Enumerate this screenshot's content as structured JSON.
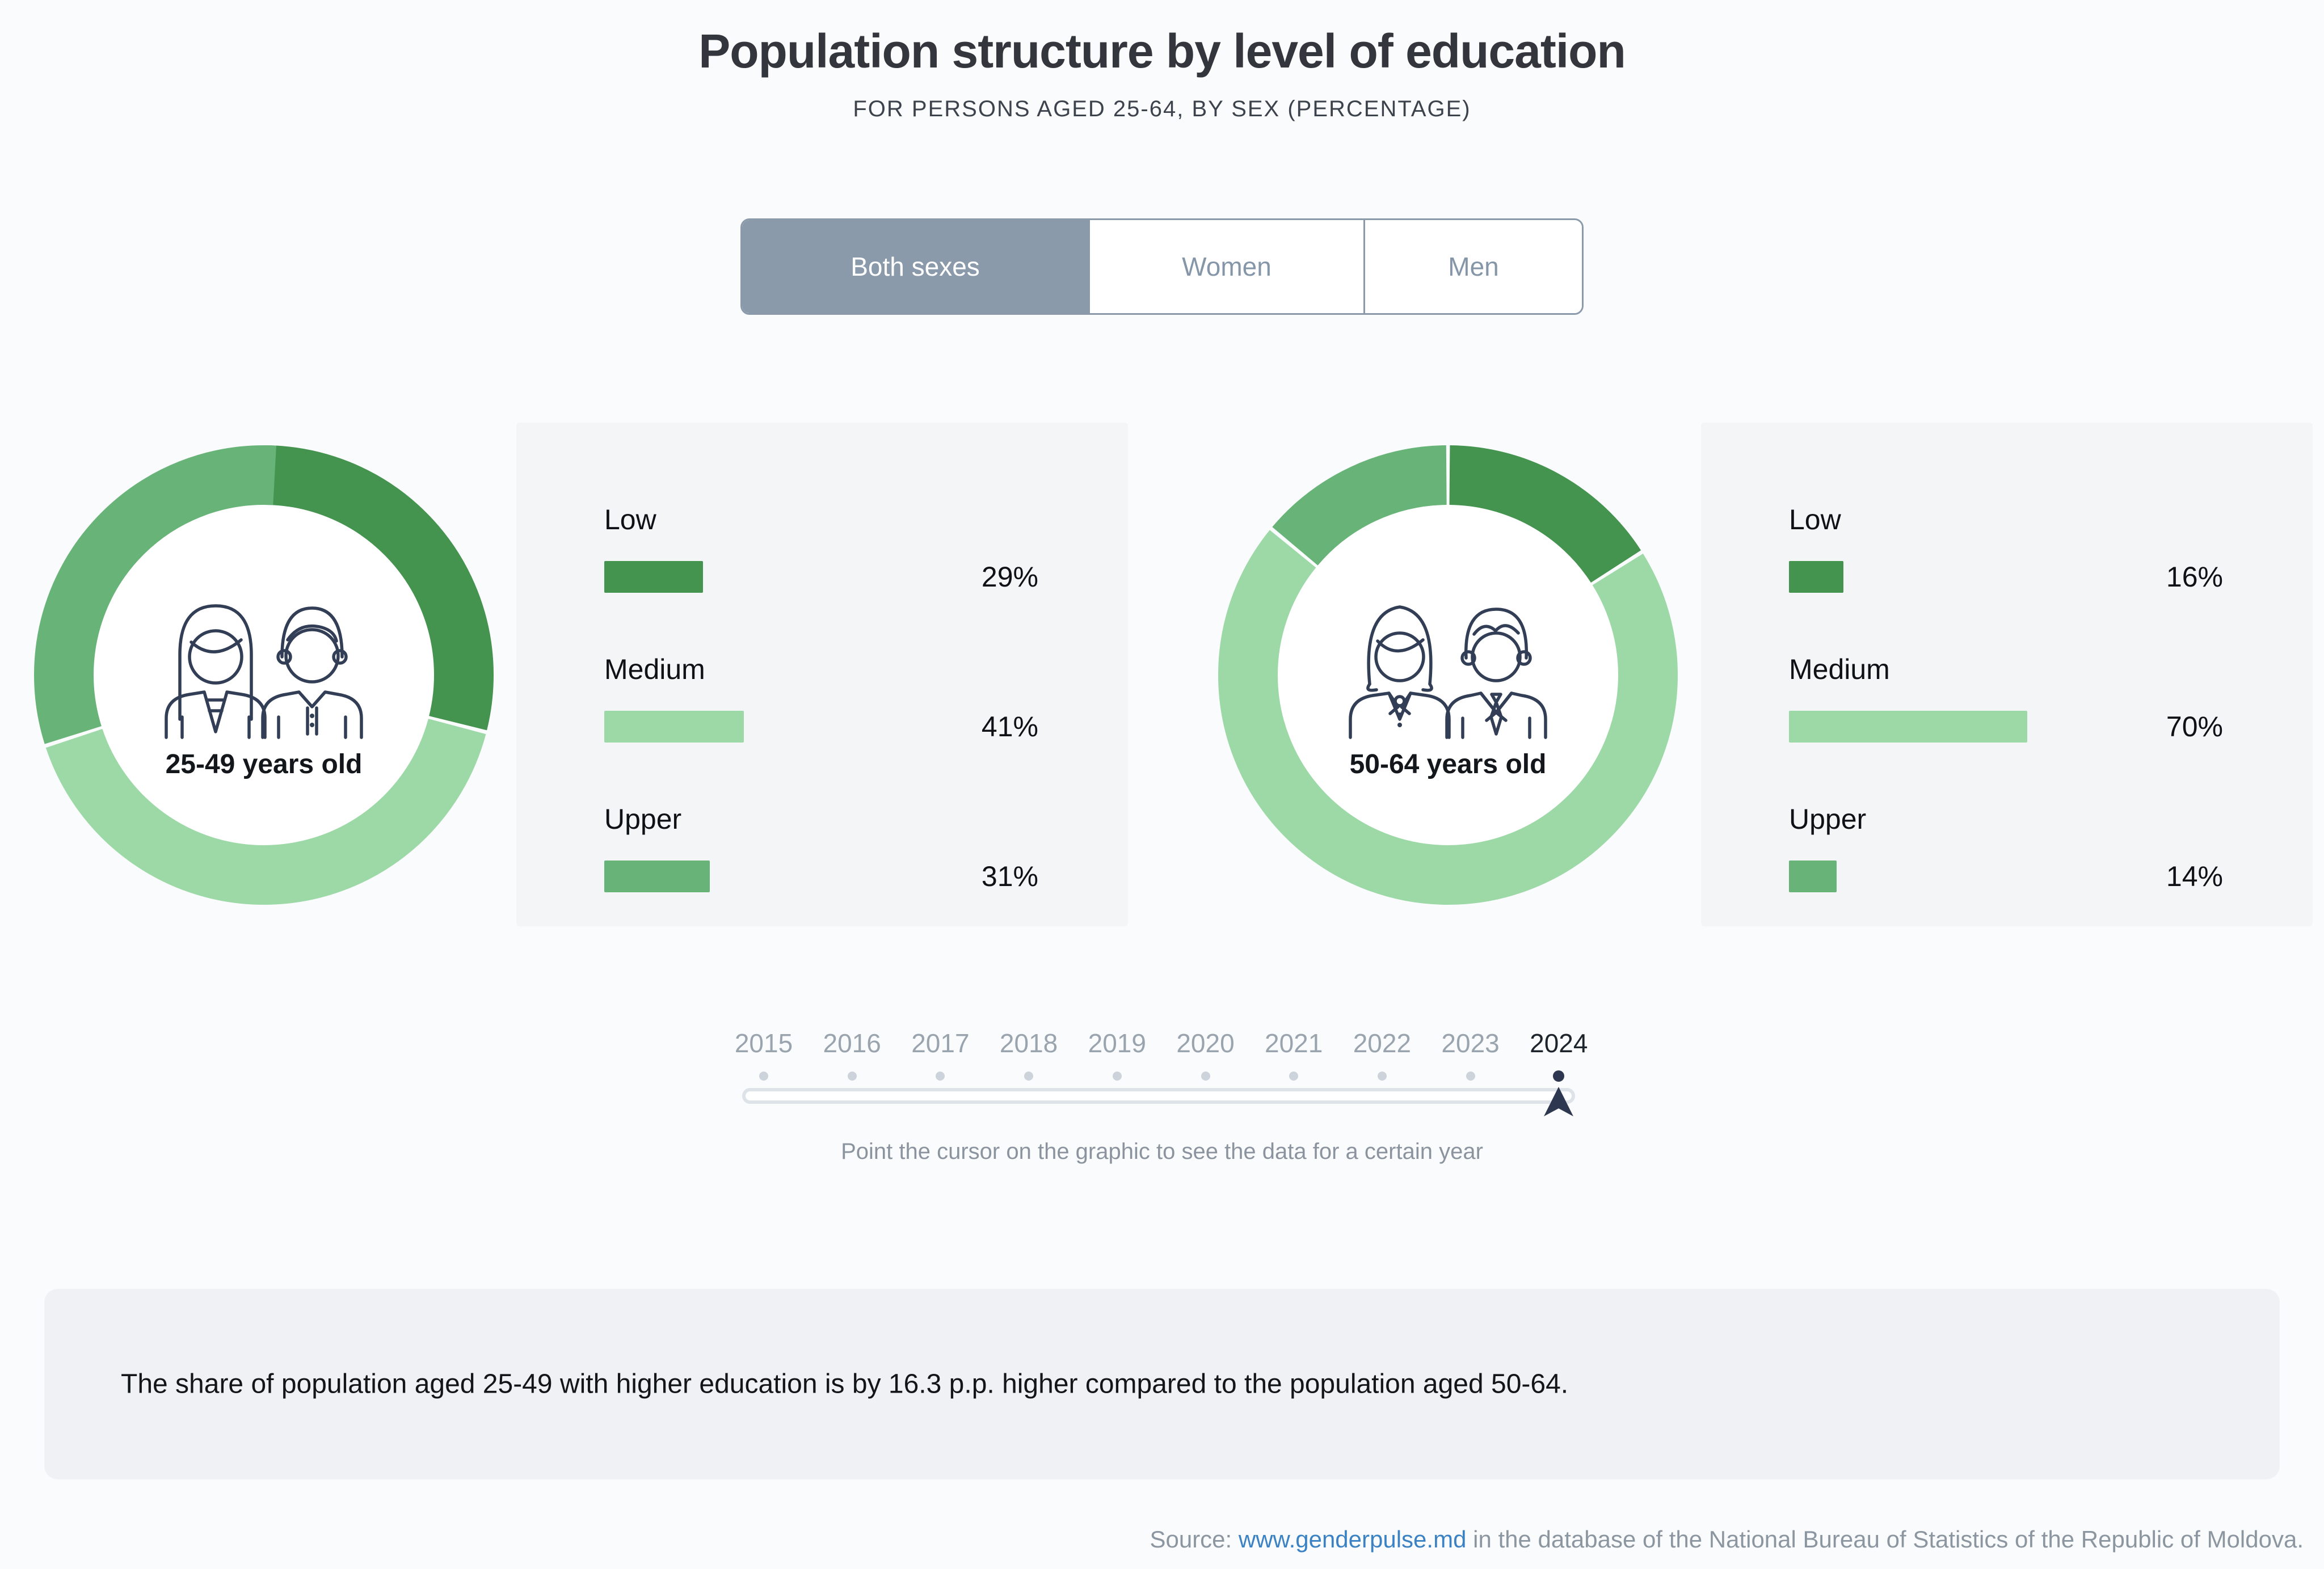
{
  "header": {
    "title": "Population structure by level of education",
    "subtitle": "FOR PERSONS AGED 25-64, BY SEX (PERCENTAGE)"
  },
  "tabs": [
    {
      "label": "Both sexes",
      "selected": true
    },
    {
      "label": "Women",
      "selected": false
    },
    {
      "label": "Men",
      "selected": false
    }
  ],
  "chart_data": [
    {
      "type": "pie",
      "style": "donut",
      "title": "25-49 years old",
      "categories": [
        "Low",
        "Medium",
        "Upper"
      ],
      "values": [
        29,
        41,
        31
      ],
      "unit": "%",
      "colors": [
        "#44934f",
        "#9cd9a6",
        "#68b478"
      ],
      "center_icon": "young-couple",
      "start_angle": "top",
      "direction": "clockwise"
    },
    {
      "type": "pie",
      "style": "donut",
      "title": "50-64 years old",
      "categories": [
        "Low",
        "Medium",
        "Upper"
      ],
      "values": [
        16,
        70,
        14
      ],
      "unit": "%",
      "colors": [
        "#44934f",
        "#9cd9a6",
        "#68b478"
      ],
      "center_icon": "older-couple",
      "start_angle": "top",
      "direction": "clockwise"
    }
  ],
  "slider": {
    "years": [
      "2015",
      "2016",
      "2017",
      "2018",
      "2019",
      "2020",
      "2021",
      "2022",
      "2023",
      "2024"
    ],
    "selected_year": "2024",
    "hint": "Point the cursor on the graphic to see the data for a certain year"
  },
  "insight": "The share of population aged 25-49 with higher education is by 16.3 p.p. higher compared to the population aged 50-64.",
  "source": {
    "prefix": "Source: ",
    "link_text": "www.genderpulse.md",
    "suffix": " in the database of the National Bureau of Statistics of the Republic of Moldova."
  },
  "theme": {
    "tab_selected_bg": "#8a9aab",
    "navy": "#2d3850",
    "link_blue": "#3b82c4",
    "green_dark": "#44934f",
    "green_light": "#9cd9a6",
    "green_medium": "#68b478",
    "page_bg": "#fafbfc",
    "card_bg": "#f3f5f7",
    "insight_bg": "#eff1f4"
  }
}
